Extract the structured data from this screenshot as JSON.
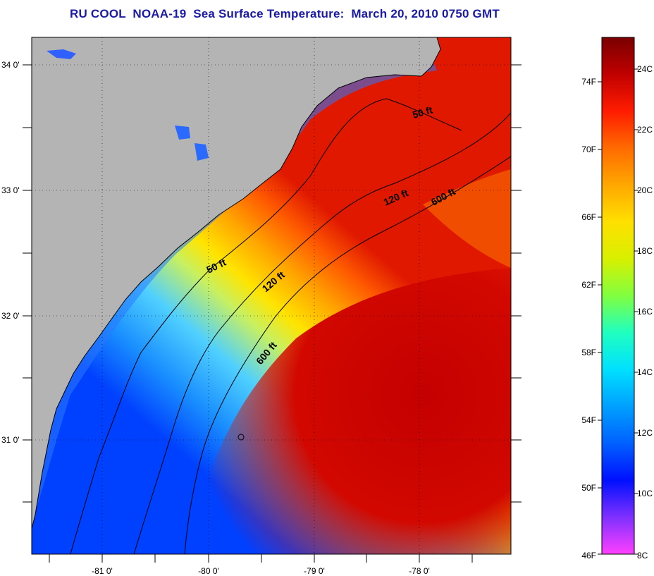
{
  "title": "RU COOL  NOAA-19  Sea Surface Temperature:  March 20, 2010 0750 GMT",
  "map": {
    "lat_labels": [
      "34 0'",
      "33 0'",
      "32 0'",
      "31 0'"
    ],
    "lon_labels": [
      "-81 0'",
      "-80 0'",
      "-79 0'",
      "-78 0'"
    ],
    "isobath_labels": [
      "50 ft",
      "50 ft",
      "120 ft",
      "120 ft",
      "600 ft",
      "600 ft"
    ],
    "colors": {
      "land": "#b4b4b4",
      "frame": "#000000"
    }
  },
  "colorbar": {
    "fahrenheit_labels": [
      "74F",
      "70F",
      "66F",
      "62F",
      "58F",
      "54F",
      "50F",
      "46F"
    ],
    "celsius_labels": [
      "24C",
      "22C",
      "20C",
      "18C",
      "16C",
      "14C",
      "12C",
      "10C",
      "8C"
    ],
    "colors": [
      "#7a0000",
      "#c00000",
      "#ff1c00",
      "#ff6a00",
      "#ffa800",
      "#ffe000",
      "#d8f000",
      "#80ff40",
      "#20ffc0",
      "#00e0ff",
      "#00a0ff",
      "#0060ff",
      "#0010ff",
      "#8030ff",
      "#ff40ff"
    ]
  }
}
